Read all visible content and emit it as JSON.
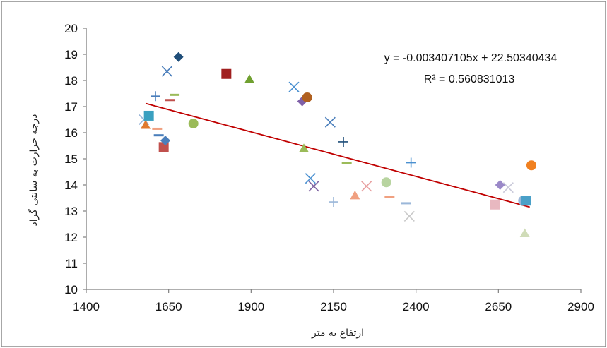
{
  "chart_data": {
    "type": "scatter",
    "xlabel": "ارتفاع به متر",
    "ylabel": "درجه حرارت به سانتی گراد",
    "xlim": [
      1400,
      2900
    ],
    "ylim": [
      10,
      20
    ],
    "x_ticks": [
      "1400",
      "1650",
      "1900",
      "2150",
      "2400",
      "2650",
      "2900"
    ],
    "y_ticks": [
      "10",
      "11",
      "12",
      "13",
      "14",
      "15",
      "16",
      "17",
      "18",
      "19",
      "20"
    ],
    "grid": "off",
    "legend": "none",
    "trendline": {
      "slope": -0.003407105,
      "intercept": 22.50340434,
      "x_start": 1580,
      "x_end": 2745,
      "color": "#c00000"
    },
    "annotations": {
      "equation": "y = -0.003407105x + 22.50340434",
      "r_squared": "R² = 0.560831013"
    },
    "points": [
      {
        "x": 1575,
        "y": 16.5,
        "marker": "x",
        "color": "#9bb7d9"
      },
      {
        "x": 1580,
        "y": 16.3,
        "marker": "triangle",
        "color": "#e07a2e"
      },
      {
        "x": 1590,
        "y": 16.65,
        "marker": "square",
        "color": "#3aa0c0"
      },
      {
        "x": 1610,
        "y": 17.4,
        "marker": "plus",
        "color": "#4a7ebb"
      },
      {
        "x": 1615,
        "y": 16.15,
        "marker": "dash",
        "color": "#f0a080"
      },
      {
        "x": 1620,
        "y": 15.9,
        "marker": "dash",
        "color": "#4a7ebb"
      },
      {
        "x": 1635,
        "y": 15.45,
        "marker": "square",
        "color": "#c0504d"
      },
      {
        "x": 1640,
        "y": 15.7,
        "marker": "diamond",
        "color": "#4a7ebb"
      },
      {
        "x": 1645,
        "y": 18.35,
        "marker": "x",
        "color": "#4a7ebb"
      },
      {
        "x": 1655,
        "y": 17.25,
        "marker": "dash",
        "color": "#c0504d"
      },
      {
        "x": 1668,
        "y": 17.45,
        "marker": "dash",
        "color": "#9bbb59"
      },
      {
        "x": 1680,
        "y": 18.9,
        "marker": "diamond",
        "color": "#1f4e79"
      },
      {
        "x": 1725,
        "y": 16.35,
        "marker": "circle",
        "color": "#9bbb59"
      },
      {
        "x": 1825,
        "y": 18.25,
        "marker": "square",
        "color": "#a01f1f"
      },
      {
        "x": 1895,
        "y": 18.05,
        "marker": "triangle",
        "color": "#70a030"
      },
      {
        "x": 2030,
        "y": 17.75,
        "marker": "x",
        "color": "#4a90d0"
      },
      {
        "x": 2055,
        "y": 17.2,
        "marker": "diamond",
        "color": "#7f60a8"
      },
      {
        "x": 2060,
        "y": 15.4,
        "marker": "triangle",
        "color": "#9bbb59"
      },
      {
        "x": 2070,
        "y": 17.35,
        "marker": "circle",
        "color": "#b06020"
      },
      {
        "x": 2080,
        "y": 14.25,
        "marker": "x",
        "color": "#4a90d0"
      },
      {
        "x": 2090,
        "y": 13.95,
        "marker": "x",
        "color": "#8064a2"
      },
      {
        "x": 2140,
        "y": 16.4,
        "marker": "x",
        "color": "#4a7ebb"
      },
      {
        "x": 2150,
        "y": 13.35,
        "marker": "plus",
        "color": "#9bb7d9"
      },
      {
        "x": 2180,
        "y": 15.65,
        "marker": "plus",
        "color": "#1f4e79"
      },
      {
        "x": 2190,
        "y": 14.85,
        "marker": "dash",
        "color": "#9bbb59"
      },
      {
        "x": 2215,
        "y": 13.6,
        "marker": "triangle",
        "color": "#f0a080"
      },
      {
        "x": 2250,
        "y": 13.95,
        "marker": "x",
        "color": "#e8a0a0"
      },
      {
        "x": 2310,
        "y": 14.1,
        "marker": "circle",
        "color": "#b8d4a0"
      },
      {
        "x": 2320,
        "y": 13.55,
        "marker": "dash",
        "color": "#f0a080"
      },
      {
        "x": 2370,
        "y": 13.3,
        "marker": "dash",
        "color": "#9bb7d9"
      },
      {
        "x": 2380,
        "y": 12.8,
        "marker": "x",
        "color": "#c8c8c8"
      },
      {
        "x": 2385,
        "y": 14.85,
        "marker": "plus",
        "color": "#4a90d0"
      },
      {
        "x": 2640,
        "y": 13.25,
        "marker": "square",
        "color": "#e8b8c0"
      },
      {
        "x": 2655,
        "y": 14.0,
        "marker": "diamond",
        "color": "#9a88c8"
      },
      {
        "x": 2680,
        "y": 13.9,
        "marker": "x",
        "color": "#c8c8d8"
      },
      {
        "x": 2725,
        "y": 13.4,
        "marker": "circle",
        "color": "#9bb7d9"
      },
      {
        "x": 2730,
        "y": 12.15,
        "marker": "triangle",
        "color": "#d0dcb8"
      },
      {
        "x": 2735,
        "y": 13.4,
        "marker": "square",
        "color": "#4aa0c8"
      },
      {
        "x": 2750,
        "y": 14.75,
        "marker": "circle",
        "color": "#f08020"
      }
    ]
  }
}
